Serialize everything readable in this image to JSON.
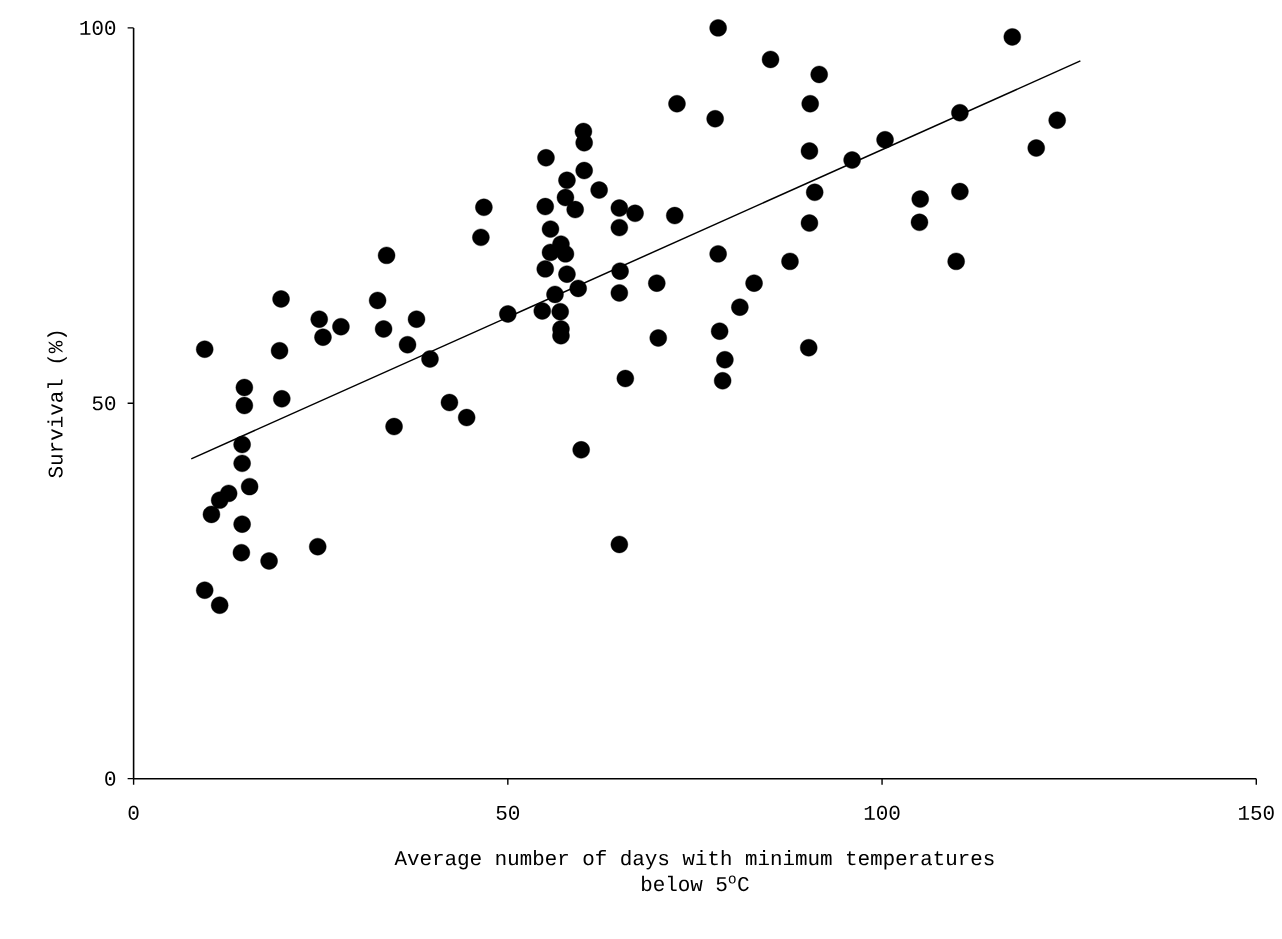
{
  "chart_data": {
    "type": "scatter",
    "xlabel": "Average number of days with minimum temperatures below 5$^{o}$C",
    "ylabel": "Survival (%)",
    "xlim": [
      0,
      150
    ],
    "ylim": [
      0,
      100
    ],
    "xticks": [
      0,
      50,
      100,
      150
    ],
    "yticks": [
      0,
      50,
      100
    ],
    "series": [
      {
        "color": "#000000",
        "marker": "circle",
        "x": [
          9.5,
          10.4,
          9.5,
          11.5,
          11.5,
          12.7,
          14.5,
          14.5,
          15.5,
          14.5,
          14.4,
          18.1,
          14.8,
          14.8,
          19.7,
          19.5,
          19.8,
          24.6,
          24.8,
          25.3,
          27.7,
          32.6,
          33.4,
          33.8,
          34.8,
          36.6,
          37.8,
          39.6,
          42.2,
          44.5,
          46.4,
          46.8,
          50.0,
          60.1,
          60.2,
          55.1,
          60.2,
          57.9,
          62.2,
          57.7,
          59.0,
          55.0,
          64.9,
          67.0,
          72.3,
          64.9,
          55.7,
          57.1,
          55.7,
          57.7,
          55.0,
          57.9,
          59.4,
          56.3,
          65.0,
          64.9,
          69.9,
          78.1,
          82.9,
          81.0,
          78.3,
          79.0,
          78.7,
          70.1,
          65.7,
          59.8,
          64.9,
          54.6,
          57.0,
          57.1,
          57.1,
          72.6,
          77.7,
          78.1,
          85.1,
          91.6,
          90.4,
          117.4,
          123.4,
          120.6,
          90.3,
          110.4,
          100.4,
          96.0,
          91.0,
          90.3,
          105.1,
          105.0,
          110.4,
          109.9,
          87.7,
          90.2
        ],
        "values": [
          57.2,
          35.2,
          25.1,
          23.1,
          37.1,
          38.0,
          44.5,
          42.0,
          38.9,
          33.9,
          30.1,
          29.0,
          52.1,
          49.7,
          63.9,
          57.0,
          50.6,
          30.9,
          61.2,
          58.8,
          60.2,
          63.7,
          59.9,
          69.7,
          46.9,
          57.8,
          61.2,
          55.9,
          50.1,
          48.1,
          72.1,
          76.1,
          61.9,
          86.2,
          84.7,
          82.7,
          81.0,
          79.7,
          78.4,
          77.4,
          75.8,
          76.2,
          76.0,
          75.3,
          75.0,
          73.4,
          73.2,
          71.2,
          70.1,
          69.9,
          67.9,
          67.2,
          65.3,
          64.5,
          67.6,
          64.7,
          66.0,
          69.9,
          66.0,
          62.8,
          59.6,
          55.8,
          53.0,
          58.7,
          53.3,
          43.8,
          31.2,
          62.3,
          62.2,
          59.9,
          59.0,
          89.9,
          87.9,
          100.0,
          95.8,
          93.8,
          89.9,
          98.8,
          87.7,
          84.0,
          83.6,
          88.7,
          85.1,
          82.4,
          78.1,
          74.0,
          77.2,
          74.1,
          78.2,
          68.9,
          68.9,
          57.4
        ]
      },
      {
        "type": "line",
        "color": "#000000",
        "marker": "none",
        "line_style": "solid",
        "x": [
          7.7,
          126.5
        ],
        "values": [
          42.6,
          95.6
        ]
      }
    ]
  }
}
